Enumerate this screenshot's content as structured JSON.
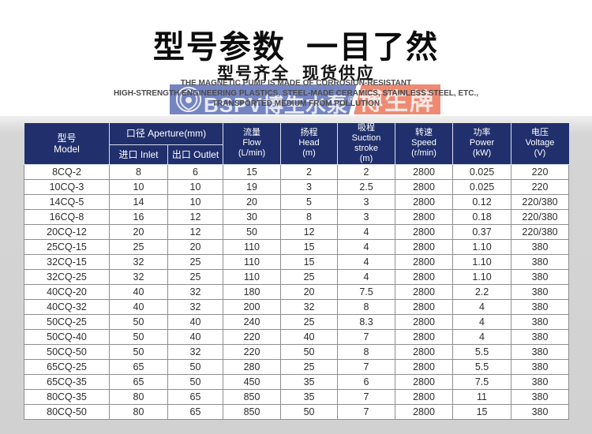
{
  "page": {
    "title": "型号参数  一目了然",
    "subtitle": "型号齐全  现货供应"
  },
  "marketing_text": {
    "line1": "THE MAGNETIC PUMP IS MADE OF CORROSION-RESISTANT",
    "line2": "HIGH-STRENGTH ENGINEERING PLASTICS, STEEL-MADE CERAMICS, STAINLESS STEEL, ETC.,",
    "line3": "TRANSPORTED MEDIUM FROM POLLUTION"
  },
  "watermark": {
    "brand_latin": "BSPV",
    "brand_cn": "博生水泵",
    "registered_mark": "®",
    "badge_text": "博生牌",
    "blue_color": "#7584c2",
    "red_color": "#ee8a74"
  },
  "table": {
    "header_bg": "#21306c",
    "header": {
      "model_cn": "型号",
      "model_en": "Model",
      "aperture_label": "口径 Aperture(mm)",
      "inlet_label": "进口 Inlet",
      "outlet_label": "出口 Outlet",
      "flow_cn": "流量",
      "flow_en": "Flow",
      "flow_unit": "(L/min)",
      "head_cn": "扬程",
      "head_en": "Head",
      "head_unit": "(m)",
      "suction_cn": "吸程",
      "suction_en1": "Suction",
      "suction_en2": "stroke",
      "suction_unit": "(m)",
      "speed_cn": "转速",
      "speed_en": "Speed",
      "speed_unit": "(r/min)",
      "power_cn": "功率",
      "power_en": "Power",
      "power_unit": "(kW)",
      "voltage_cn": "电压",
      "voltage_en": "Voltage",
      "voltage_unit": "(V)"
    },
    "column_keys": [
      "model",
      "inlet",
      "outlet",
      "flow",
      "head",
      "suction-stroke",
      "speed",
      "power",
      "voltage"
    ],
    "rows": [
      [
        "8CQ-2",
        "8",
        "6",
        "15",
        "2",
        "2",
        "2800",
        "0.025",
        "220"
      ],
      [
        "10CQ-3",
        "10",
        "10",
        "19",
        "3",
        "2.5",
        "2800",
        "0.025",
        "220"
      ],
      [
        "14CQ-5",
        "14",
        "10",
        "20",
        "5",
        "3",
        "2800",
        "0.12",
        "220/380"
      ],
      [
        "16CQ-8",
        "16",
        "12",
        "30",
        "8",
        "3",
        "2800",
        "0.18",
        "220/380"
      ],
      [
        "20CQ-12",
        "20",
        "12",
        "50",
        "12",
        "4",
        "2800",
        "0.37",
        "220/380"
      ],
      [
        "25CQ-15",
        "25",
        "20",
        "110",
        "15",
        "4",
        "2800",
        "1.10",
        "380"
      ],
      [
        "32CQ-15",
        "32",
        "25",
        "110",
        "15",
        "4",
        "2800",
        "1.10",
        "380"
      ],
      [
        "32CQ-25",
        "32",
        "25",
        "110",
        "25",
        "4",
        "2800",
        "1.10",
        "380"
      ],
      [
        "40CQ-20",
        "40",
        "32",
        "180",
        "20",
        "7.5",
        "2800",
        "2.2",
        "380"
      ],
      [
        "40CQ-32",
        "40",
        "32",
        "200",
        "32",
        "8",
        "2800",
        "4",
        "380"
      ],
      [
        "50CQ-25",
        "50",
        "40",
        "240",
        "25",
        "8.3",
        "2800",
        "4",
        "380"
      ],
      [
        "50CQ-40",
        "50",
        "40",
        "220",
        "40",
        "7",
        "2800",
        "4",
        "380"
      ],
      [
        "50CQ-50",
        "50",
        "32",
        "220",
        "50",
        "8",
        "2800",
        "5.5",
        "380"
      ],
      [
        "65CQ-25",
        "65",
        "50",
        "280",
        "25",
        "7",
        "2800",
        "5.5",
        "380"
      ],
      [
        "65CQ-35",
        "65",
        "50",
        "450",
        "35",
        "6",
        "2800",
        "7.5",
        "380"
      ],
      [
        "80CQ-35",
        "80",
        "65",
        "850",
        "35",
        "7",
        "2800",
        "11",
        "380"
      ],
      [
        "80CQ-50",
        "80",
        "65",
        "850",
        "50",
        "7",
        "2800",
        "15",
        "380"
      ]
    ]
  }
}
